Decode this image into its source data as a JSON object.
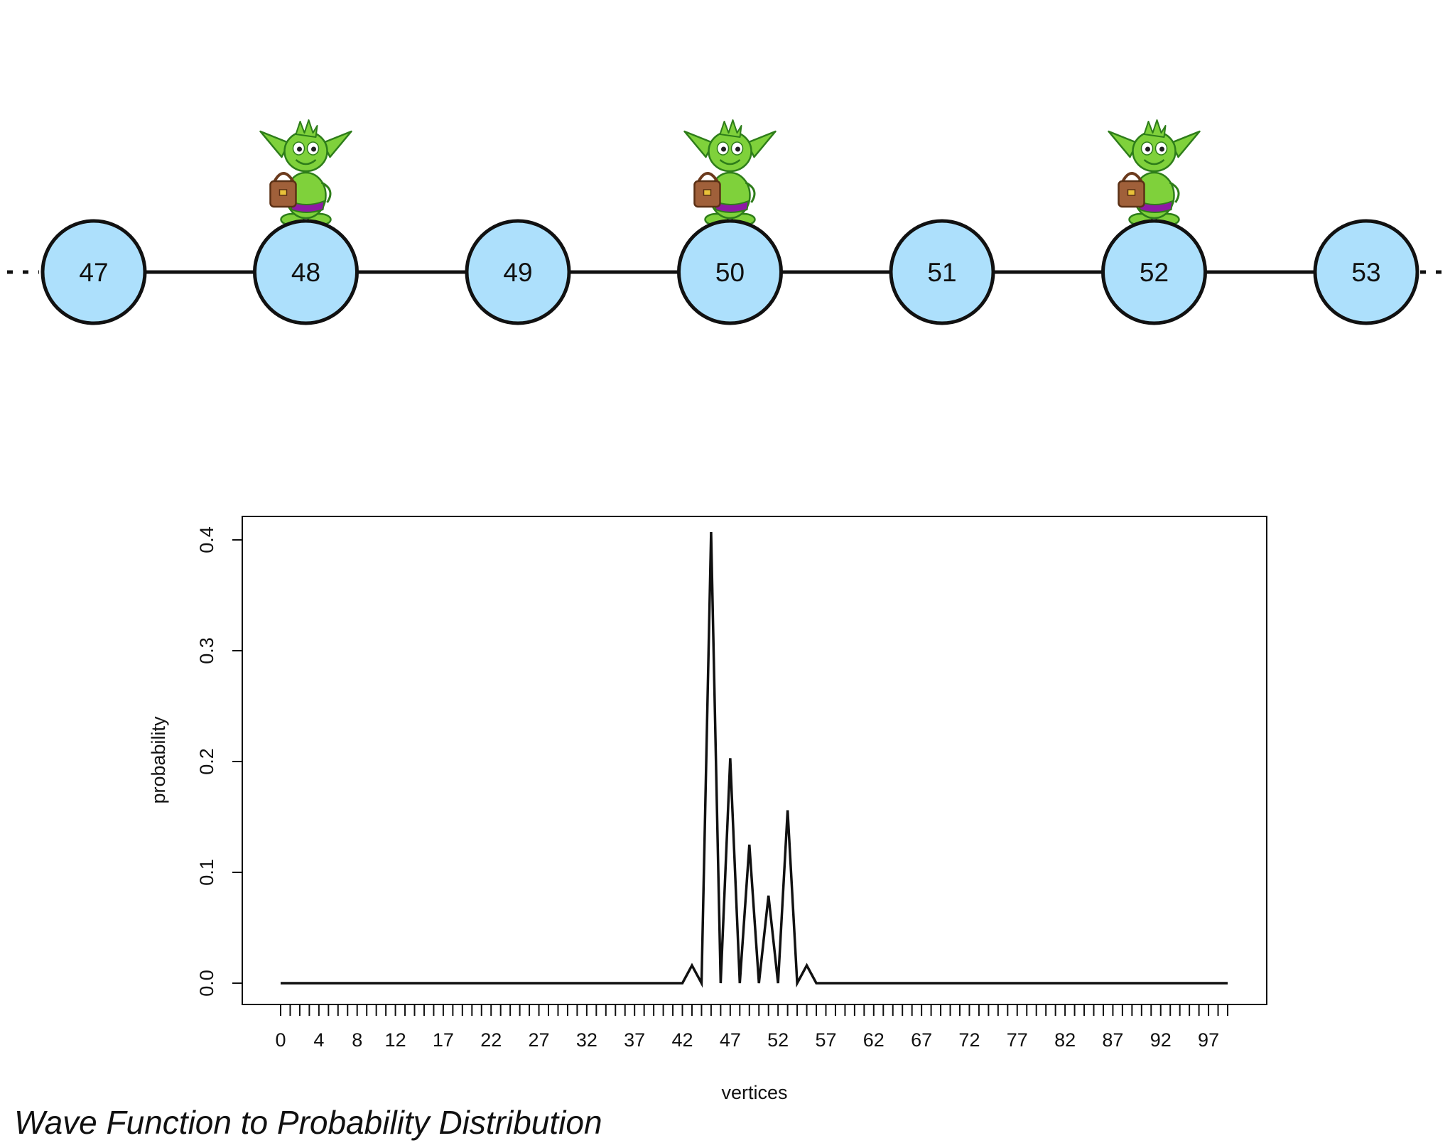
{
  "graph": {
    "nodes": [
      "47",
      "48",
      "49",
      "50",
      "51",
      "52",
      "53"
    ],
    "walkers_on": [
      "48",
      "50",
      "52"
    ],
    "node_fill": "#ade0fc",
    "walker_colors": {
      "skin": "#7fd13b",
      "outline": "#2e7d1a",
      "bag": "#a0603a",
      "shorts": "#8e1aa5"
    }
  },
  "chart_data": {
    "type": "line",
    "xlabel": "vertices",
    "ylabel": "probability",
    "ylim": [
      0,
      0.4
    ],
    "yticks": [
      "0.0",
      "0.1",
      "0.2",
      "0.3",
      "0.4"
    ],
    "xticks": [
      "0",
      "4",
      "8",
      "12",
      "17",
      "22",
      "27",
      "32",
      "37",
      "42",
      "47",
      "52",
      "57",
      "62",
      "67",
      "72",
      "77",
      "82",
      "87",
      "92",
      "97"
    ],
    "xtick_values": [
      0,
      4,
      8,
      12,
      17,
      22,
      27,
      32,
      37,
      42,
      47,
      52,
      57,
      62,
      67,
      72,
      77,
      82,
      87,
      92,
      97
    ],
    "x_min": 0,
    "x_max": 99,
    "series": [
      {
        "values": [
          0,
          0,
          0,
          0,
          0,
          0,
          0,
          0,
          0,
          0,
          0,
          0,
          0,
          0,
          0,
          0,
          0,
          0,
          0,
          0,
          0,
          0,
          0,
          0,
          0,
          0,
          0,
          0,
          0,
          0,
          0,
          0,
          0,
          0,
          0,
          0,
          0,
          0,
          0,
          0,
          0,
          0,
          0,
          0.016,
          0,
          0.407,
          0,
          0.203,
          0,
          0.125,
          0,
          0.079,
          0,
          0.156,
          0,
          0.016,
          0,
          0,
          0,
          0,
          0,
          0,
          0,
          0,
          0,
          0,
          0,
          0,
          0,
          0,
          0,
          0,
          0,
          0,
          0,
          0,
          0,
          0,
          0,
          0,
          0,
          0,
          0,
          0,
          0,
          0,
          0,
          0,
          0,
          0,
          0,
          0,
          0,
          0,
          0,
          0,
          0,
          0,
          0,
          0
        ]
      }
    ]
  },
  "caption": "Wave Function to Probability Distribution"
}
